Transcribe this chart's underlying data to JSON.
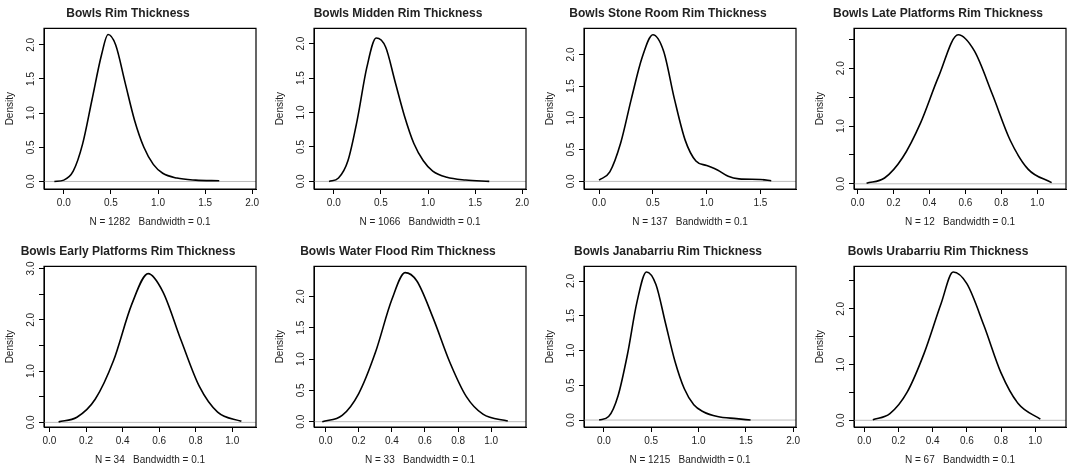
{
  "chart_data": [
    {
      "type": "line",
      "title": "Bowls Rim Thickness",
      "xlabel": "N = 1282   Bandwidth = 0.1",
      "ylabel": "Density",
      "xlim": [
        -0.21,
        2.04
      ],
      "ylim": [
        -0.11,
        2.24
      ],
      "xticks": [
        {
          "value": 0,
          "label": "0.0"
        },
        0.5,
        {
          "value": 1,
          "label": "1.0"
        },
        1.5,
        {
          "value": 2,
          "label": "2.0"
        }
      ],
      "yticks": [
        {
          "value": 0,
          "label": "0.0"
        },
        {
          "value": 0.5,
          "label": "0.5"
        },
        {
          "value": 1,
          "label": "1.0"
        },
        {
          "value": 1.5,
          "label": "1.5"
        },
        {
          "value": 2,
          "label": "2.0"
        }
      ],
      "ref_lines": [
        {
          "axis": "y",
          "value": 0,
          "color": "#bbbbbb"
        }
      ],
      "series": [
        {
          "color": "#000000",
          "x": [
            -0.1,
            0,
            0.1,
            0.2,
            0.3,
            0.4,
            0.47,
            0.55,
            0.65,
            0.75,
            0.85,
            0.95,
            1.05,
            1.2,
            1.4,
            1.65
          ],
          "values": [
            0,
            0.02,
            0.15,
            0.55,
            1.2,
            1.85,
            2.15,
            2.0,
            1.45,
            0.9,
            0.5,
            0.25,
            0.12,
            0.05,
            0.02,
            0.01
          ]
        }
      ]
    },
    {
      "type": "line",
      "title": "Bowls Midden Rim Thickness",
      "xlabel": "N = 1066   Bandwidth = 0.1",
      "ylabel": "Density",
      "xlim": [
        -0.21,
        2.04
      ],
      "ylim": [
        -0.11,
        2.22
      ],
      "xticks": [
        {
          "value": 0,
          "label": "0.0"
        },
        0.5,
        {
          "value": 1,
          "label": "1.0"
        },
        1.5,
        {
          "value": 2,
          "label": "2.0"
        }
      ],
      "yticks": [
        {
          "value": 0,
          "label": "0.0"
        },
        {
          "value": 0.5,
          "label": "0.5"
        },
        {
          "value": 1,
          "label": "1.0"
        },
        {
          "value": 1.5,
          "label": "1.5"
        },
        {
          "value": 2,
          "label": "2.0"
        }
      ],
      "ref_lines": [
        {
          "axis": "y",
          "value": 0,
          "color": "#bbbbbb"
        }
      ],
      "series": [
        {
          "color": "#000000",
          "x": [
            -0.05,
            0.05,
            0.15,
            0.25,
            0.35,
            0.45,
            0.55,
            0.65,
            0.75,
            0.85,
            0.95,
            1.05,
            1.2,
            1.4,
            1.65
          ],
          "values": [
            0,
            0.05,
            0.3,
            0.9,
            1.65,
            2.08,
            1.95,
            1.45,
            0.95,
            0.55,
            0.3,
            0.15,
            0.06,
            0.02,
            0
          ]
        }
      ]
    },
    {
      "type": "line",
      "title": "Bowls Stone Room Rim Thickness",
      "xlabel": "N = 137   Bandwidth = 0.1",
      "ylabel": "Density",
      "xlim": [
        -0.14,
        1.83
      ],
      "ylim": [
        -0.12,
        2.41
      ],
      "xticks": [
        {
          "value": 0,
          "label": "0.0"
        },
        0.5,
        {
          "value": 1,
          "label": "1.0"
        },
        1.5
      ],
      "yticks": [
        {
          "value": 0,
          "label": "0.0"
        },
        {
          "value": 0.5,
          "label": "0.5"
        },
        {
          "value": 1,
          "label": "1.0"
        },
        {
          "value": 1.5,
          "label": "1.5"
        },
        {
          "value": 2,
          "label": "2.0"
        }
      ],
      "ref_lines": [
        {
          "axis": "y",
          "value": 0,
          "color": "#bbbbbb"
        }
      ],
      "series": [
        {
          "color": "#000000",
          "x": [
            0,
            0.1,
            0.2,
            0.3,
            0.4,
            0.5,
            0.6,
            0.7,
            0.8,
            0.9,
            1.0,
            1.1,
            1.2,
            1.3,
            1.5,
            1.6
          ],
          "values": [
            0.02,
            0.15,
            0.6,
            1.3,
            1.95,
            2.31,
            2.05,
            1.3,
            0.65,
            0.32,
            0.25,
            0.18,
            0.08,
            0.04,
            0.03,
            0.01
          ]
        }
      ]
    },
    {
      "type": "line",
      "title": "Bowls Late Platforms Rim Thickness",
      "xlabel": "N = 12   Bandwidth = 0.1",
      "ylabel": "Density",
      "xlim": [
        -0.02,
        1.16
      ],
      "ylim": [
        -0.09,
        2.69
      ],
      "xticks": [
        {
          "value": 0,
          "label": "0.0"
        },
        0.2,
        0.4,
        0.6,
        0.8,
        {
          "value": 1,
          "label": "1.0"
        }
      ],
      "yticks": [
        {
          "value": 0,
          "label": "0.0"
        },
        {
          "value": 0.5,
          "label": null
        },
        {
          "value": 1,
          "label": "1.0"
        },
        {
          "value": 1.5,
          "label": null
        },
        {
          "value": 2,
          "label": "2.0"
        },
        {
          "value": 2.5,
          "label": null
        }
      ],
      "ref_lines": [
        {
          "axis": "y",
          "value": 0,
          "color": "#bbbbbb"
        }
      ],
      "series": [
        {
          "color": "#000000",
          "x": [
            0.05,
            0.15,
            0.25,
            0.35,
            0.45,
            0.56,
            0.65,
            0.75,
            0.85,
            0.95,
            1.08
          ],
          "values": [
            0.01,
            0.1,
            0.45,
            1.05,
            1.85,
            2.58,
            2.3,
            1.55,
            0.75,
            0.25,
            0.02
          ]
        }
      ]
    },
    {
      "type": "line",
      "title": "Bowls Early Platforms Rim Thickness",
      "xlabel": "N = 34   Bandwidth = 0.1",
      "ylabel": "Density",
      "xlim": [
        -0.03,
        1.13
      ],
      "ylim": [
        -0.09,
        3.04
      ],
      "xticks": [
        {
          "value": 0,
          "label": "0.0"
        },
        0.2,
        0.4,
        0.6,
        0.8,
        {
          "value": 1,
          "label": "1.0"
        }
      ],
      "yticks": [
        {
          "value": 0,
          "label": "0.0"
        },
        {
          "value": 0.5,
          "label": null
        },
        {
          "value": 1,
          "label": "1.0"
        },
        {
          "value": 1.5,
          "label": null
        },
        {
          "value": 2,
          "label": "2.0"
        },
        {
          "value": 2.5,
          "label": null
        },
        {
          "value": 3,
          "label": "3.0"
        }
      ],
      "ref_lines": [
        {
          "axis": "y",
          "value": 0,
          "color": "#bbbbbb"
        }
      ],
      "series": [
        {
          "color": "#000000",
          "x": [
            0.05,
            0.15,
            0.25,
            0.35,
            0.45,
            0.54,
            0.62,
            0.72,
            0.82,
            0.92,
            1.05
          ],
          "values": [
            0.01,
            0.1,
            0.45,
            1.2,
            2.3,
            2.9,
            2.55,
            1.6,
            0.7,
            0.2,
            0.02
          ]
        }
      ]
    },
    {
      "type": "line",
      "title": "Bowls Water Flood Rim Thickness",
      "xlabel": "N = 33   Bandwidth = 0.1",
      "ylabel": "Density",
      "xlim": [
        -0.07,
        1.21
      ],
      "ylim": [
        -0.085,
        2.48
      ],
      "xticks": [
        {
          "value": 0,
          "label": "0.0"
        },
        0.2,
        0.4,
        0.6,
        0.8,
        {
          "value": 1,
          "label": "1.0"
        }
      ],
      "yticks": [
        {
          "value": 0,
          "label": "0.0"
        },
        {
          "value": 0.5,
          "label": "0.5"
        },
        {
          "value": 1,
          "label": "1.0"
        },
        {
          "value": 1.5,
          "label": "1.5"
        },
        {
          "value": 2,
          "label": "2.0"
        }
      ],
      "ref_lines": [
        {
          "axis": "y",
          "value": 0,
          "color": "#bbbbbb"
        }
      ],
      "series": [
        {
          "color": "#000000",
          "x": [
            -0.02,
            0.1,
            0.2,
            0.3,
            0.4,
            0.48,
            0.55,
            0.65,
            0.75,
            0.85,
            0.95,
            1.1
          ],
          "values": [
            0,
            0.1,
            0.45,
            1.1,
            1.95,
            2.38,
            2.25,
            1.65,
            0.95,
            0.4,
            0.12,
            0.01
          ]
        }
      ]
    },
    {
      "type": "line",
      "title": "Bowls Janabarriu Rim Thickness",
      "xlabel": "N = 1215   Bandwidth = 0.1",
      "ylabel": "Density",
      "xlim": [
        -0.21,
        2.03
      ],
      "ylim": [
        -0.1,
        2.21
      ],
      "xticks": [
        {
          "value": 0,
          "label": "0.0"
        },
        0.5,
        {
          "value": 1,
          "label": "1.0"
        },
        1.5,
        {
          "value": 2,
          "label": "2.0"
        }
      ],
      "yticks": [
        {
          "value": 0,
          "label": "0.0"
        },
        {
          "value": 0.5,
          "label": "0.5"
        },
        {
          "value": 1,
          "label": "1.0"
        },
        {
          "value": 1.5,
          "label": "1.5"
        },
        {
          "value": 2,
          "label": "2.0"
        }
      ],
      "ref_lines": [
        {
          "axis": "y",
          "value": 0,
          "color": "#bbbbbb"
        }
      ],
      "series": [
        {
          "color": "#000000",
          "x": [
            -0.05,
            0.05,
            0.15,
            0.25,
            0.35,
            0.45,
            0.55,
            0.65,
            0.75,
            0.85,
            0.95,
            1.05,
            1.2,
            1.4,
            1.55
          ],
          "values": [
            0,
            0.05,
            0.35,
            0.95,
            1.7,
            2.13,
            1.95,
            1.4,
            0.85,
            0.45,
            0.22,
            0.12,
            0.05,
            0.02,
            0
          ]
        }
      ]
    },
    {
      "type": "line",
      "title": "Bowls Urabarriu Rim Thickness",
      "xlabel": "N = 67   Bandwidth = 0.1",
      "ylabel": "Density",
      "xlim": [
        -0.06,
        1.18
      ],
      "ylim": [
        -0.12,
        2.76
      ],
      "xticks": [
        {
          "value": 0,
          "label": "0.0"
        },
        0.2,
        0.4,
        0.6,
        0.8,
        {
          "value": 1,
          "label": "1.0"
        }
      ],
      "yticks": [
        {
          "value": 0,
          "label": "0.0"
        },
        {
          "value": 0.5,
          "label": null
        },
        {
          "value": 1,
          "label": "1.0"
        },
        {
          "value": 1.5,
          "label": null
        },
        {
          "value": 2,
          "label": "2.0"
        },
        {
          "value": 2.5,
          "label": null
        }
      ],
      "ref_lines": [
        {
          "axis": "y",
          "value": 0,
          "color": "#bbbbbb"
        }
      ],
      "series": [
        {
          "color": "#000000",
          "x": [
            0.05,
            0.15,
            0.25,
            0.35,
            0.45,
            0.52,
            0.6,
            0.7,
            0.8,
            0.9,
            1.03
          ],
          "values": [
            0.01,
            0.12,
            0.5,
            1.2,
            2.1,
            2.66,
            2.45,
            1.7,
            0.85,
            0.3,
            0.02
          ]
        }
      ]
    }
  ]
}
